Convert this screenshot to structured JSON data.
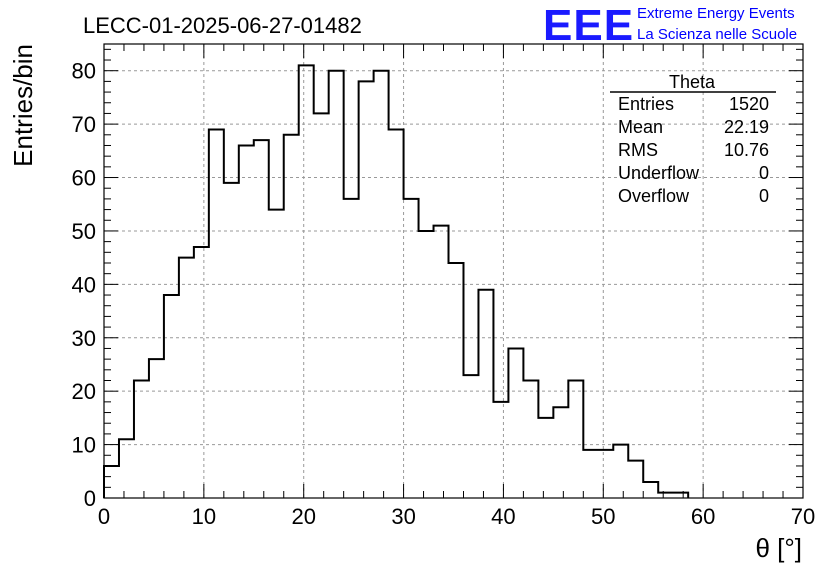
{
  "chart_data": {
    "type": "bar",
    "title": "LECC-01-2025-06-27-01482",
    "xlabel": "θ [°]",
    "ylabel": "Entries/bin",
    "xlim": [
      0,
      70
    ],
    "ylim": [
      0,
      85
    ],
    "xticks": [
      0,
      10,
      20,
      30,
      40,
      50,
      60,
      70
    ],
    "yticks": [
      0,
      10,
      20,
      30,
      40,
      50,
      60,
      70,
      80
    ],
    "grid": true,
    "bin_width": 1.5,
    "values": [
      6,
      11,
      22,
      26,
      38,
      45,
      47,
      69,
      59,
      66,
      67,
      54,
      68,
      81,
      72,
      80,
      56,
      78,
      80,
      69,
      56,
      50,
      51,
      44,
      23,
      39,
      18,
      28,
      22,
      15,
      17,
      22,
      9,
      9,
      10,
      7,
      3,
      1,
      1,
      0,
      0,
      0,
      0,
      0,
      0,
      0,
      0
    ],
    "stats": {
      "title": "Theta",
      "rows": [
        {
          "label": "Entries",
          "value": "1520"
        },
        {
          "label": "Mean",
          "value": "22.19"
        },
        {
          "label": "RMS",
          "value": "10.76"
        },
        {
          "label": "Underflow",
          "value": "0"
        },
        {
          "label": "Overflow",
          "value": "0"
        }
      ]
    }
  },
  "logo": {
    "mark": "EEE",
    "line1": "Extreme Energy Events",
    "line2": "La Scienza nelle Scuole"
  }
}
